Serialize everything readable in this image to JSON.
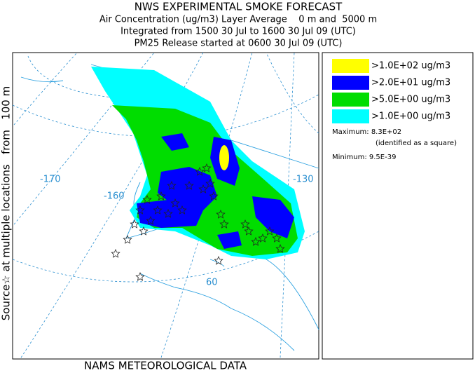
{
  "header": {
    "title": "NWS EXPERIMENTAL SMOKE FORECAST",
    "line2": "Air Concentration (ug/m3) Layer Average    0 m and  5000 m",
    "line3": "Integrated from 1500 30 Jul to 1600 30 Jul 09 (UTC)",
    "line4": "PM25 Release started at 0600 30 Jul 09 (UTC)"
  },
  "side_label": "Source☆ at multiple locations   from   100 m",
  "footer": "NAMS METEOROLOGICAL DATA",
  "map": {
    "labels": [
      "-170",
      "-160",
      "-130",
      "60"
    ]
  },
  "legend": {
    "entries": [
      {
        "label": ">1.0E+02 ug/m3",
        "color": "#ffff00"
      },
      {
        "label": ">2.0E+01 ug/m3",
        "color": "#0000ff"
      },
      {
        "label": ">5.0E+00 ug/m3",
        "color": "#00dd00"
      },
      {
        "label": ">1.0E+00 ug/m3",
        "color": "#00ffff"
      }
    ],
    "maximum": "Maximum: 8.3E+02",
    "note": "(identified as a square)",
    "minimum": "Minimum: 9.5E-39"
  }
}
